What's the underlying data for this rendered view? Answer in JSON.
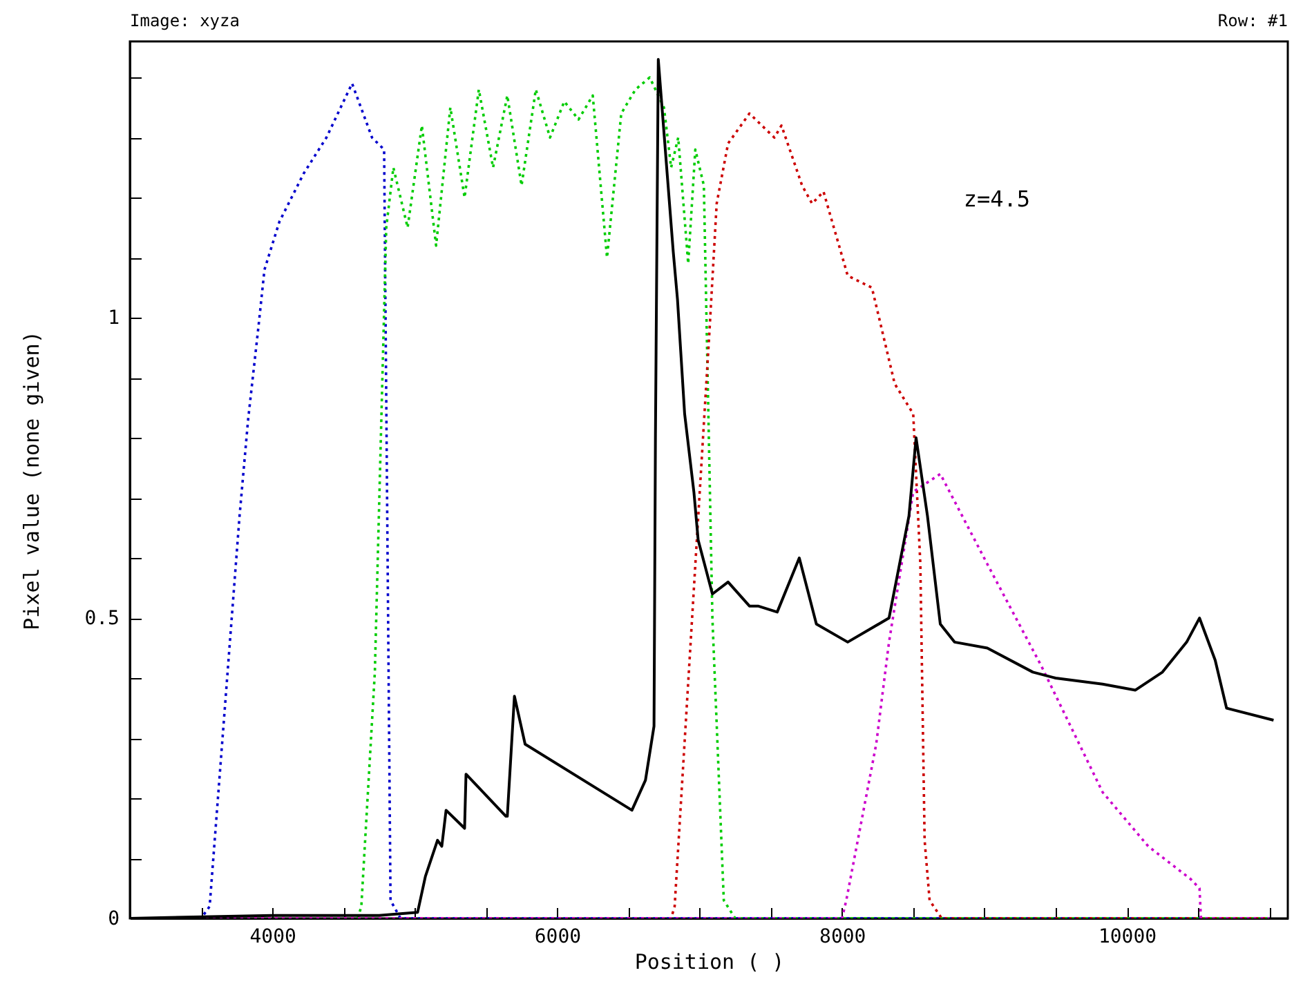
{
  "chart_data": {
    "type": "line",
    "title": "Image: xyza",
    "xlabel": "Position ( )",
    "ylabel": "Pixel value (none given)",
    "annotations": [
      "Row: #1",
      "z=4.5"
    ],
    "xlim": [
      3000,
      11130
    ],
    "ylim": [
      0,
      1.46
    ],
    "xticks": [
      {
        "value": 3500,
        "label": null
      },
      4000,
      {
        "value": 4500,
        "label": null
      },
      {
        "value": 5000,
        "label": null
      },
      {
        "value": 5500,
        "label": null
      },
      6000,
      {
        "value": 6500,
        "label": null
      },
      {
        "value": 7000,
        "label": null
      },
      {
        "value": 7500,
        "label": null
      },
      8000,
      {
        "value": 8500,
        "label": null
      },
      {
        "value": 9000,
        "label": null
      },
      {
        "value": 9500,
        "label": null
      },
      10000,
      {
        "value": 10500,
        "label": null
      },
      {
        "value": 11000,
        "label": null
      }
    ],
    "yticks": [
      0,
      {
        "value": 0.1,
        "label": null
      },
      {
        "value": 0.2,
        "label": null
      },
      {
        "value": 0.3,
        "label": null
      },
      {
        "value": 0.4,
        "label": null
      },
      0.5,
      {
        "value": 0.6,
        "label": null
      },
      {
        "value": 0.7,
        "label": null
      },
      {
        "value": 0.8,
        "label": null
      },
      {
        "value": 0.9,
        "label": null
      },
      1,
      {
        "value": 1.1,
        "label": null
      },
      {
        "value": 1.2,
        "label": null
      },
      {
        "value": 1.3,
        "label": null
      },
      {
        "value": 1.4,
        "label": null
      }
    ],
    "grid": false,
    "marker": "none",
    "series": [
      {
        "color": "#0000cc",
        "line_style": "dotted",
        "x": [
          3000,
          3500,
          3560,
          3770,
          3830,
          3905,
          3945,
          4050,
          4220,
          4380,
          4560,
          4700,
          4785,
          4830,
          4900,
          11000
        ],
        "values": [
          0,
          0,
          0.02,
          0.67,
          0.83,
          0.99,
          1.08,
          1.16,
          1.24,
          1.3,
          1.39,
          1.3,
          1.28,
          0.03,
          0,
          0
        ]
      },
      {
        "color": "#00cc00",
        "line_style": "dotted",
        "x": [
          3000,
          4600,
          4625,
          4720,
          4800,
          4850,
          4950,
          5050,
          5150,
          5250,
          5350,
          5450,
          5550,
          5650,
          5750,
          5850,
          5950,
          6050,
          6150,
          6250,
          6350,
          6450,
          6550,
          6650,
          6750,
          6800,
          6850,
          6920,
          6970,
          7030,
          7090,
          7170,
          7250,
          11000
        ],
        "values": [
          0,
          0,
          0.02,
          0.41,
          1.15,
          1.25,
          1.15,
          1.32,
          1.12,
          1.35,
          1.2,
          1.38,
          1.25,
          1.37,
          1.22,
          1.38,
          1.3,
          1.36,
          1.33,
          1.37,
          1.1,
          1.34,
          1.38,
          1.4,
          1.35,
          1.25,
          1.3,
          1.09,
          1.28,
          1.22,
          0.5,
          0.03,
          0,
          0
        ]
      },
      {
        "color": "#cc0000",
        "line_style": "dotted",
        "x": [
          3000,
          6800,
          6825,
          7070,
          7120,
          7200,
          7350,
          7525,
          7575,
          7720,
          7790,
          7870,
          8040,
          8210,
          8370,
          8500,
          8550,
          8580,
          8615,
          8700,
          11000
        ],
        "values": [
          0,
          0,
          0.02,
          0.98,
          1.19,
          1.29,
          1.34,
          1.3,
          1.32,
          1.22,
          1.19,
          1.21,
          1.07,
          1.05,
          0.89,
          0.84,
          0.59,
          0.13,
          0.03,
          0,
          0
        ]
      },
      {
        "color": "#cc00cc",
        "line_style": "dotted",
        "x": [
          3000,
          8000,
          8030,
          8240,
          8330,
          8500,
          8690,
          9020,
          9400,
          9830,
          10150,
          10450,
          10510,
          10520,
          11000
        ],
        "values": [
          0,
          0,
          0.03,
          0.29,
          0.46,
          0.71,
          0.74,
          0.59,
          0.42,
          0.21,
          0.12,
          0.065,
          0.05,
          0,
          0
        ]
      },
      {
        "color": "#000000",
        "line_style": "solid",
        "x": [
          3000,
          4000,
          4750,
          5020,
          5075,
          5160,
          5190,
          5220,
          5350,
          5360,
          5640,
          5650,
          5700,
          5775,
          6525,
          6620,
          6680,
          6690,
          6710,
          6815,
          6845,
          6895,
          6960,
          6990,
          7090,
          7200,
          7350,
          7410,
          7545,
          7700,
          7820,
          8040,
          8330,
          8470,
          8520,
          8600,
          8690,
          8790,
          9020,
          9340,
          9500,
          9830,
          10060,
          10250,
          10420,
          10510,
          10620,
          10700,
          11030
        ],
        "values": [
          0,
          0.005,
          0.005,
          0.01,
          0.07,
          0.13,
          0.12,
          0.18,
          0.15,
          0.24,
          0.17,
          0.17,
          0.37,
          0.29,
          0.18,
          0.23,
          0.32,
          0.8,
          1.43,
          1.11,
          1.03,
          0.84,
          0.71,
          0.63,
          0.54,
          0.56,
          0.52,
          0.52,
          0.51,
          0.6,
          0.49,
          0.46,
          0.5,
          0.67,
          0.8,
          0.67,
          0.49,
          0.46,
          0.45,
          0.41,
          0.4,
          0.39,
          0.38,
          0.41,
          0.46,
          0.5,
          0.43,
          0.35,
          0.33
        ]
      }
    ]
  }
}
